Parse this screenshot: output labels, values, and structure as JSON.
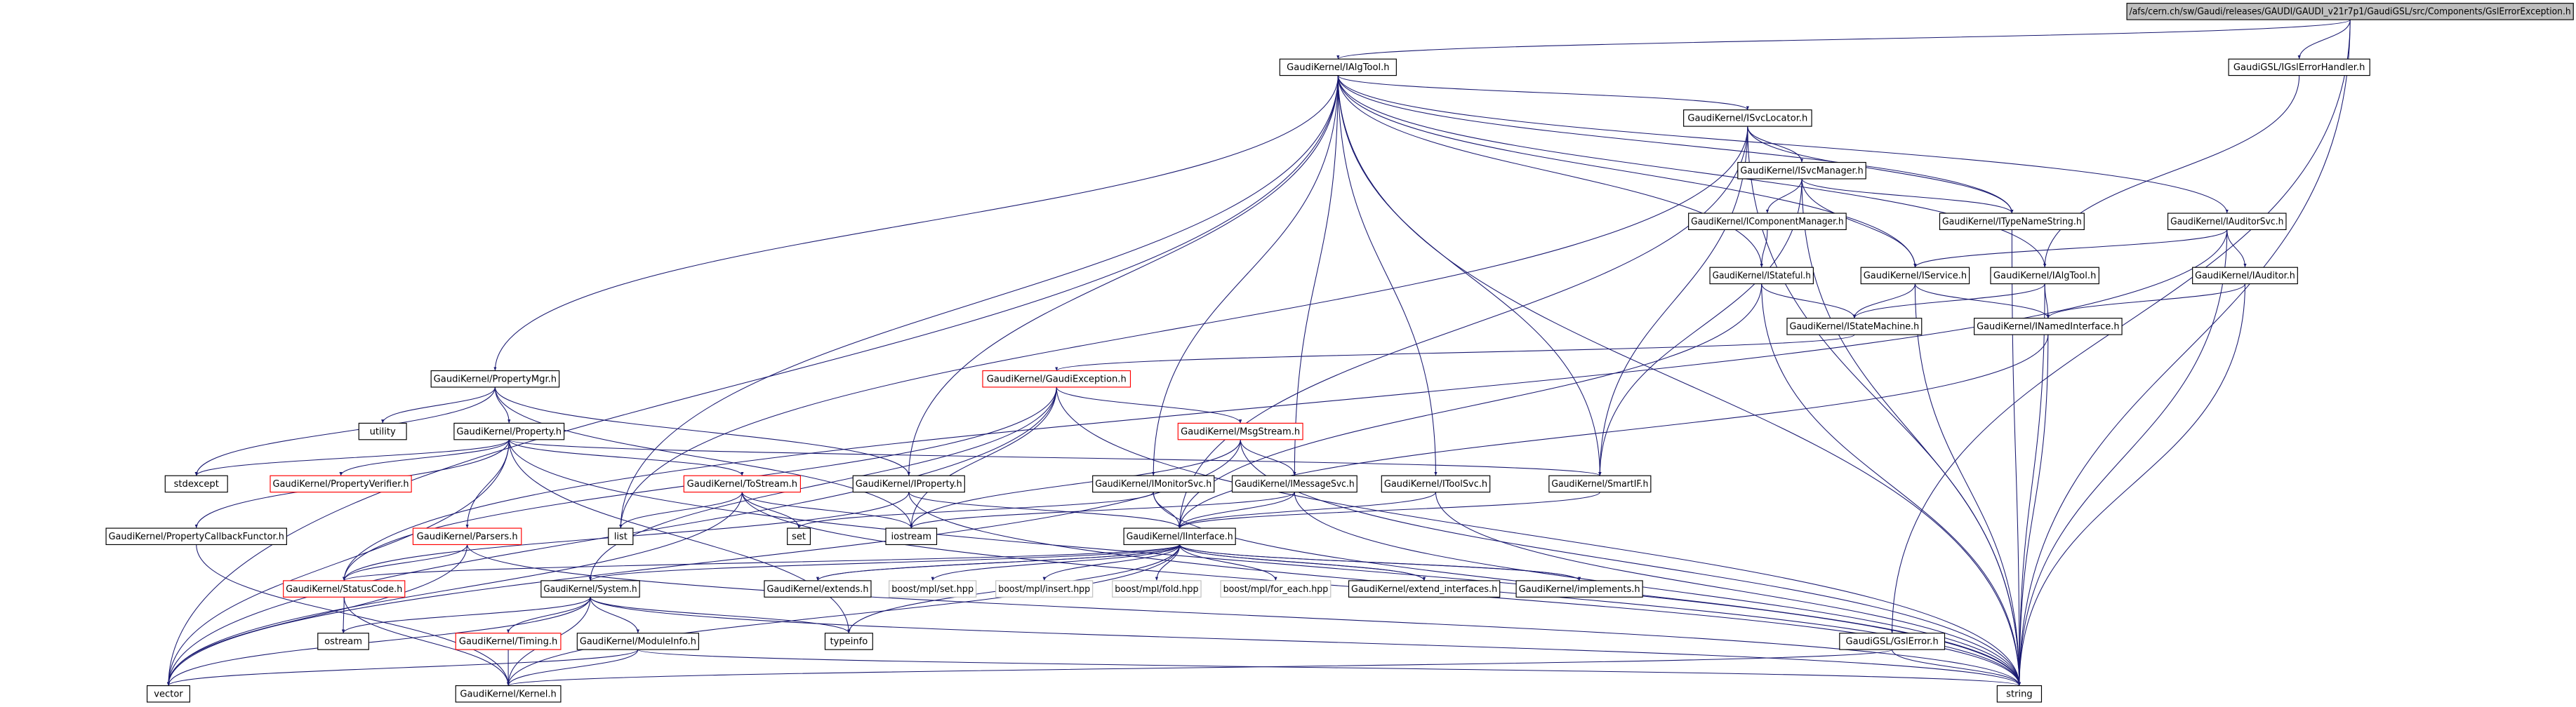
{
  "nodes": [
    {
      "label": "/afs/cern.ch/sw/Gaudi/releases/GAUDI/GAUDI_v21r7p1/GaudiGSL/src/Components/GslErrorException.h"
    },
    {
      "label": "GaudiKernel/IAlgTool.h"
    },
    {
      "label": "GaudiGSL/IGslErrorHandler.h"
    },
    {
      "label": "GaudiKernel/ISvcLocator.h"
    },
    {
      "label": "GaudiKernel/ISvcManager.h"
    },
    {
      "label": "GaudiKernel/IComponentManager.h"
    },
    {
      "label": "GaudiKernel/ITypeNameString.h"
    },
    {
      "label": "GaudiKernel/IAuditorSvc.h"
    },
    {
      "label": "GaudiKernel/IStateful.h"
    },
    {
      "label": "GaudiKernel/IService.h"
    },
    {
      "label": "GaudiKernel/IAlgTool.h"
    },
    {
      "label": "GaudiKernel/IAuditor.h"
    },
    {
      "label": "GaudiKernel/IStateMachine.h"
    },
    {
      "label": "GaudiKernel/INamedInterface.h"
    },
    {
      "label": "GaudiKernel/GaudiException.h"
    },
    {
      "label": "GaudiKernel/PropertyMgr.h"
    },
    {
      "label": "utility"
    },
    {
      "label": "GaudiKernel/Property.h"
    },
    {
      "label": "GaudiKernel/MsgStream.h"
    },
    {
      "label": "stdexcept"
    },
    {
      "label": "GaudiKernel/PropertyVerifier.h"
    },
    {
      "label": "GaudiKernel/ToStream.h"
    },
    {
      "label": "GaudiKernel/IProperty.h"
    },
    {
      "label": "GaudiKernel/IMonitorSvc.h"
    },
    {
      "label": "GaudiKernel/IMessageSvc.h"
    },
    {
      "label": "GaudiKernel/IToolSvc.h"
    },
    {
      "label": "GaudiKernel/SmartIF.h"
    },
    {
      "label": "GaudiKernel/PropertyCallbackFunctor.h"
    },
    {
      "label": "GaudiKernel/Parsers.h"
    },
    {
      "label": "list"
    },
    {
      "label": "set"
    },
    {
      "label": "iostream"
    },
    {
      "label": "GaudiKernel/IInterface.h"
    },
    {
      "label": "GaudiKernel/StatusCode.h"
    },
    {
      "label": "GaudiKernel/System.h"
    },
    {
      "label": "GaudiKernel/extends.h"
    },
    {
      "label": "boost/mpl/set.hpp"
    },
    {
      "label": "boost/mpl/insert.hpp"
    },
    {
      "label": "boost/mpl/fold.hpp"
    },
    {
      "label": "boost/mpl/for_each.hpp"
    },
    {
      "label": "GaudiKernel/extend_interfaces.h"
    },
    {
      "label": "GaudiKernel/implements.h"
    },
    {
      "label": "ostream"
    },
    {
      "label": "GaudiKernel/Timing.h"
    },
    {
      "label": "GaudiKernel/ModuleInfo.h"
    },
    {
      "label": "typeinfo"
    },
    {
      "label": "GaudiGSL/GslError.h"
    },
    {
      "label": "vector"
    },
    {
      "label": "GaudiKernel/Kernel.h"
    },
    {
      "label": "string"
    }
  ]
}
